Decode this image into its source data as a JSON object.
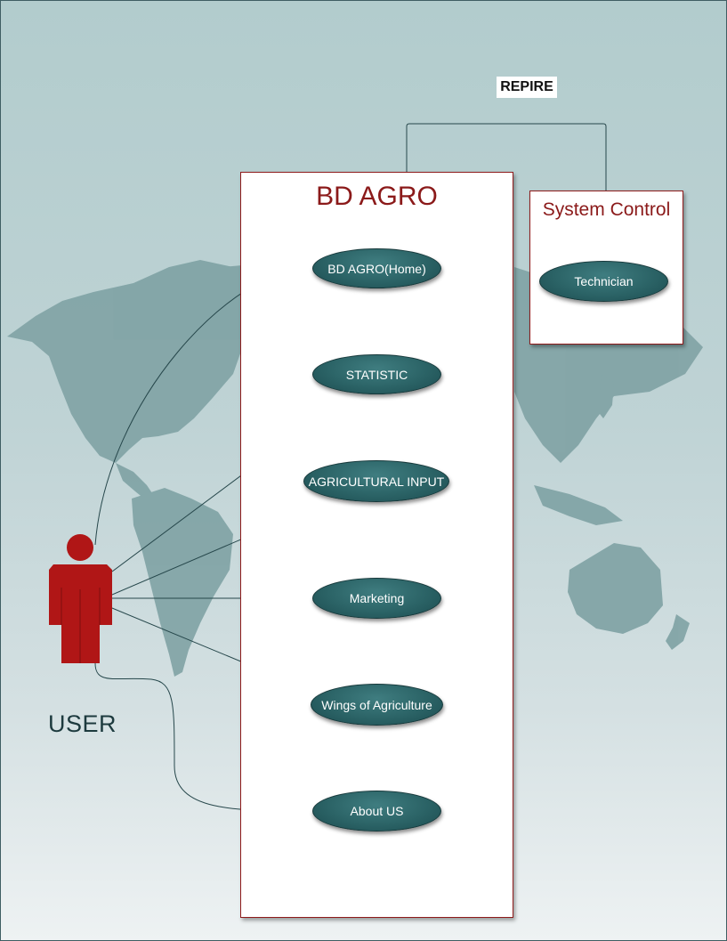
{
  "diagram": {
    "system_title": "BD AGRO",
    "control_title": "System Control",
    "relation_label": "REPIRE",
    "actor_label": "USER",
    "use_cases": [
      "BD AGRO(Home)",
      "STATISTIC",
      "AGRICULTURAL INPUT",
      "Marketing",
      "Wings of Agriculture",
      "About US"
    ],
    "control_use_cases": [
      "Technician"
    ]
  },
  "colors": {
    "accent": "#8b1a1a",
    "actor": "#b01616",
    "usecase_fill": "#2b6366",
    "map": "#7fa2a4",
    "line": "#26474b"
  }
}
